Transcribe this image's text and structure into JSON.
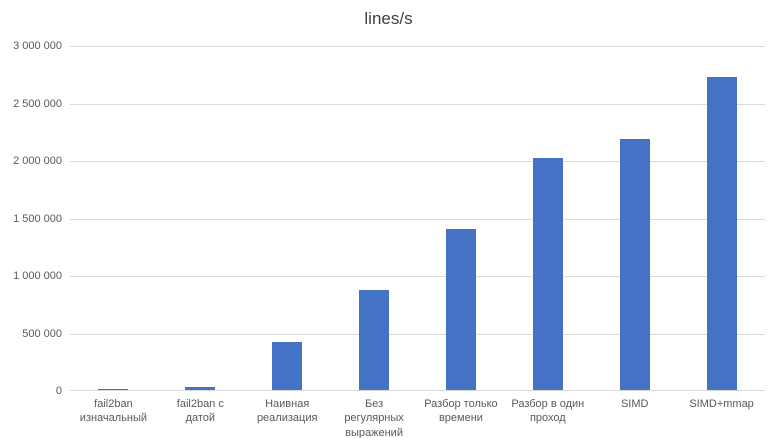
{
  "chart_data": {
    "type": "bar",
    "title": "lines/s",
    "xlabel": "",
    "ylabel": "",
    "categories": [
      "fail2ban изначальный",
      "fail2ban с датой",
      "Наивная реализация",
      "Без регулярных выражений",
      "Разбор только времени",
      "Разбор в один проход",
      "SIMD",
      "SIMD+mmap"
    ],
    "values": [
      3000,
      25000,
      420000,
      870000,
      1400000,
      2020000,
      2180000,
      2720000
    ],
    "ylim": [
      0,
      3000000
    ],
    "ytick_step": 500000,
    "ytick_labels": [
      "0",
      "500 000",
      "1 000 000",
      "1 500 000",
      "2 000 000",
      "2 500 000",
      "3 000 000"
    ],
    "grid": true,
    "legend": false,
    "bar_color": "#4472C4",
    "gridline_color": "#d9d9d9",
    "text_color": "#595959",
    "title_color": "#404040",
    "background_color": "#ffffff"
  }
}
